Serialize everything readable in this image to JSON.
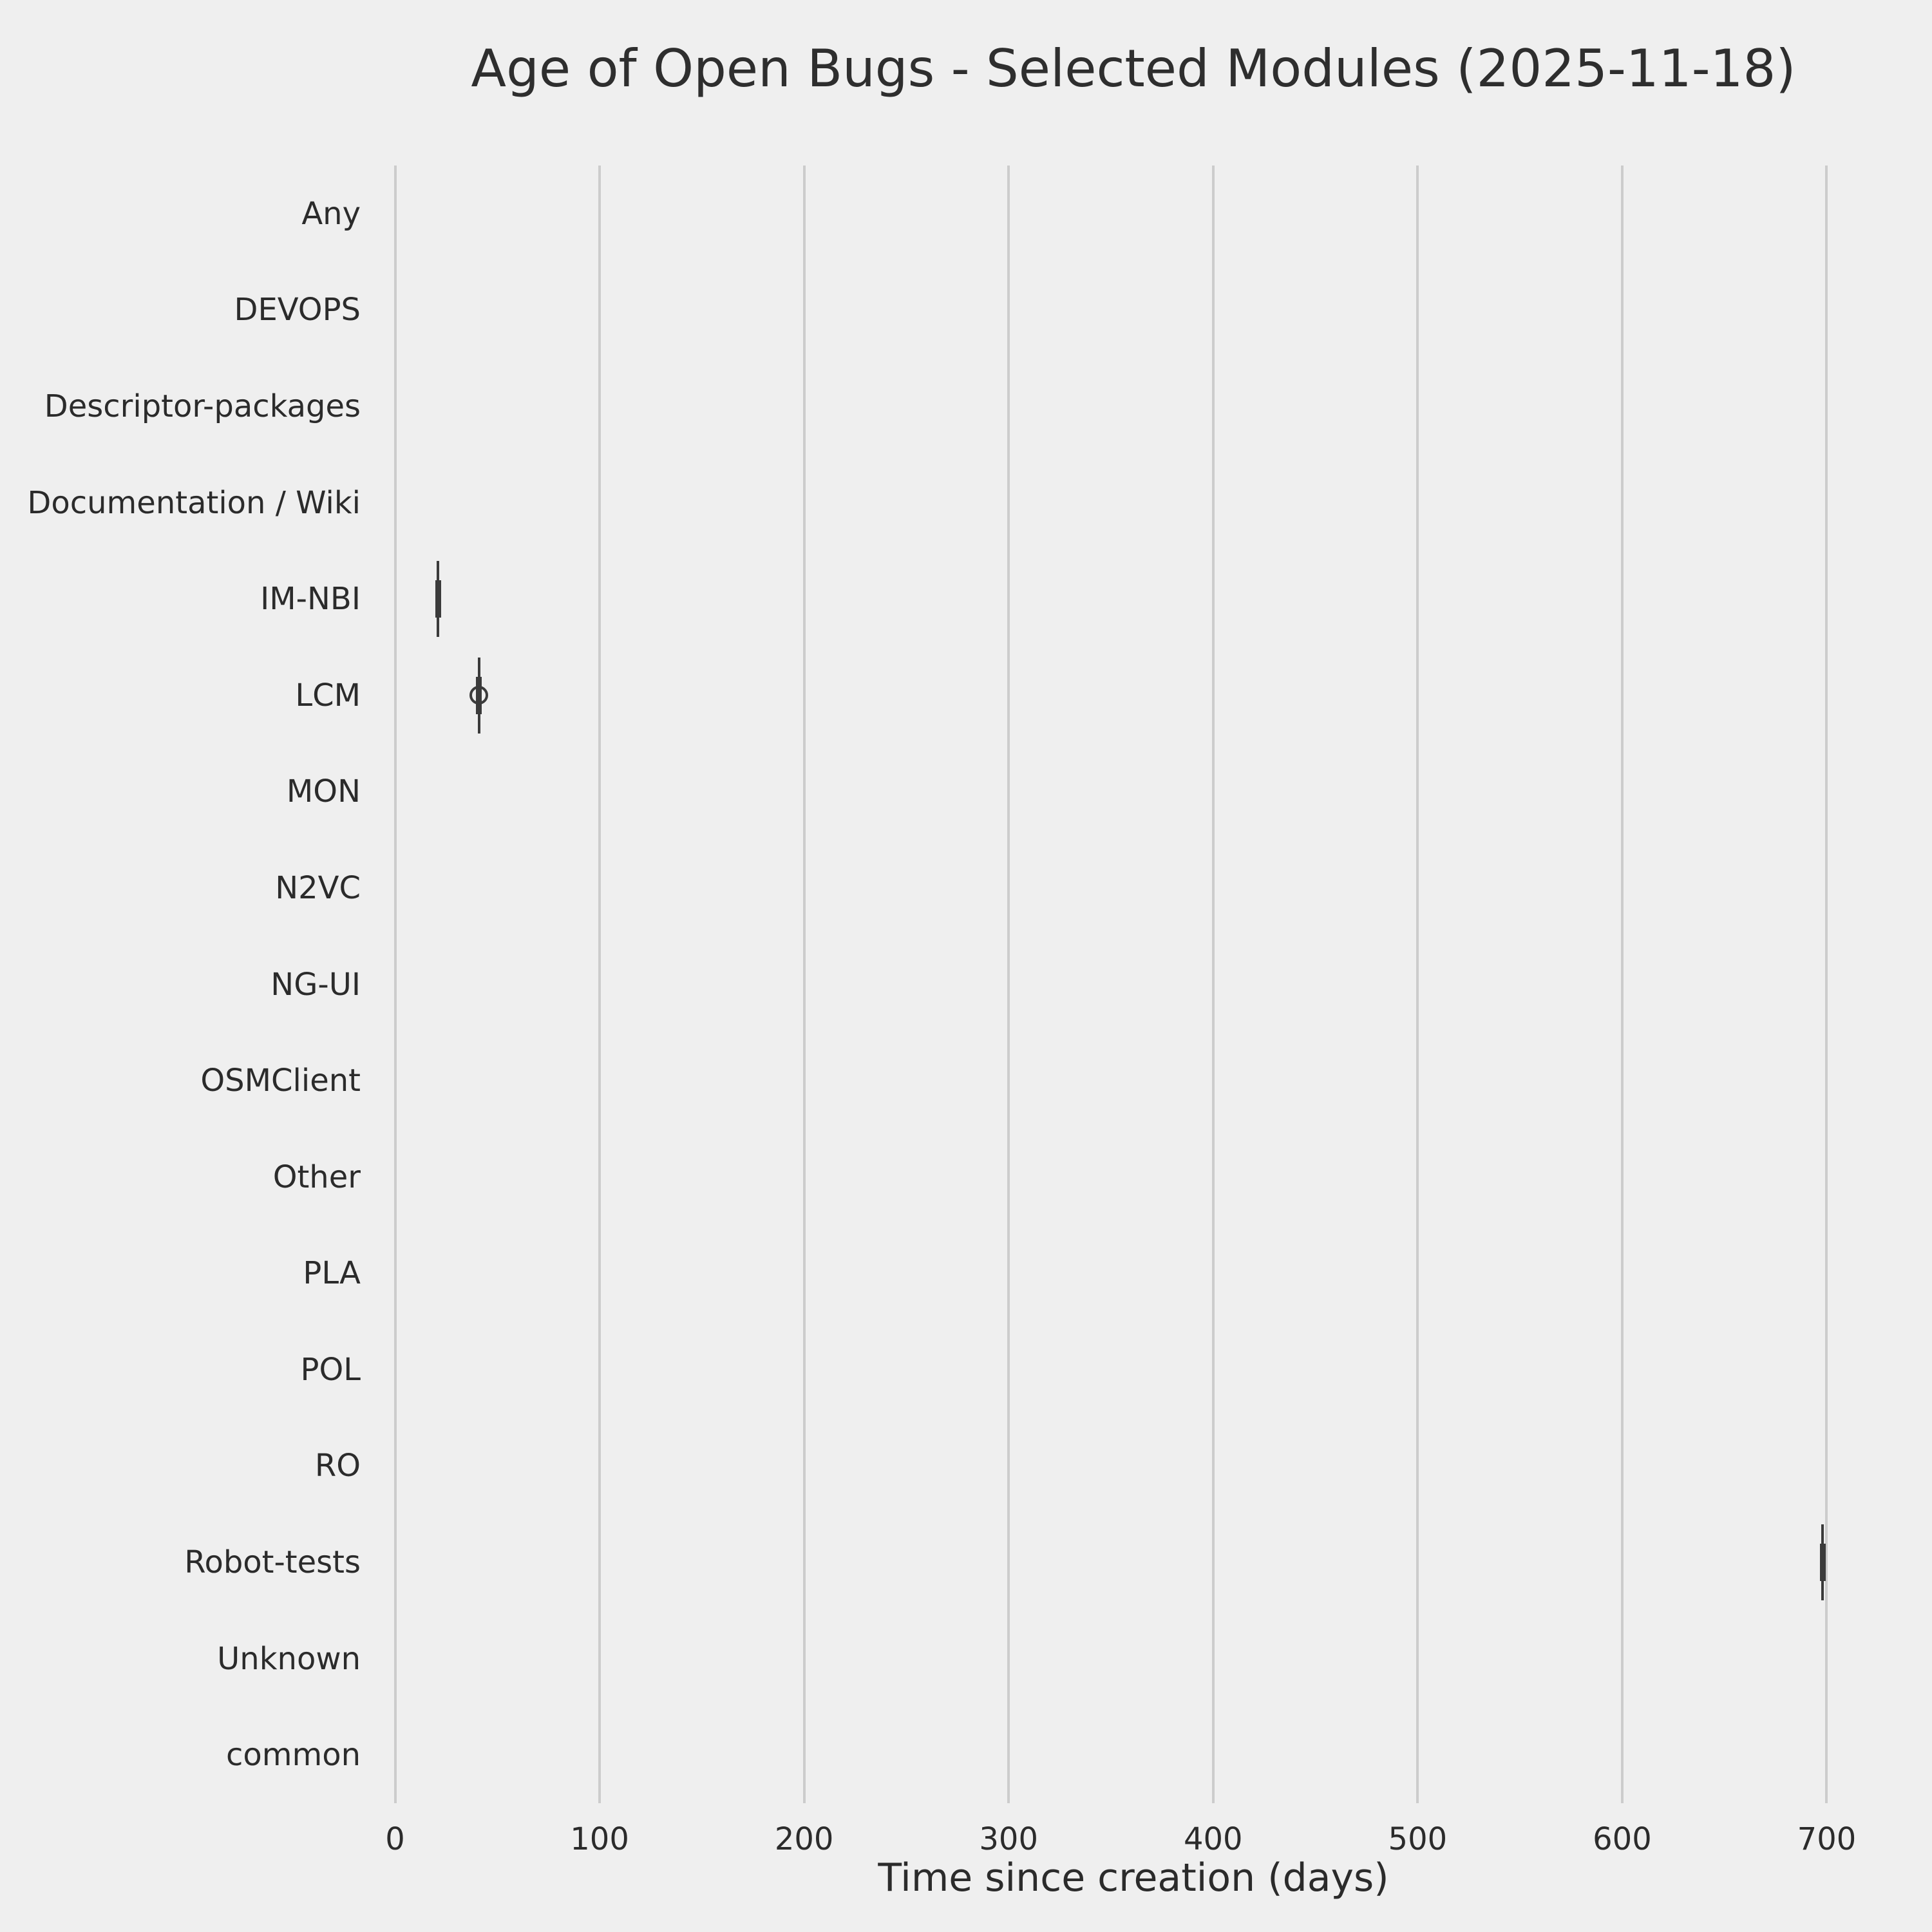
{
  "chart_data": {
    "type": "boxplot",
    "orientation": "horizontal",
    "title": "Age of Open Bugs - Selected Modules (2025-11-18)",
    "xlabel": "Time since creation (days)",
    "ylabel": "",
    "categories": [
      "Any",
      "DEVOPS",
      "Descriptor-packages",
      "Documentation / Wiki",
      "IM-NBI",
      "LCM",
      "MON",
      "N2VC",
      "NG-UI",
      "OSMClient",
      "Other",
      "PLA",
      "POL",
      "RO",
      "Robot-tests",
      "Unknown",
      "common"
    ],
    "xticks": [
      0,
      100,
      200,
      300,
      400,
      500,
      600,
      700
    ],
    "xlim_days": [
      -14,
      736
    ],
    "grid": "vertical-only",
    "legend": "none",
    "boxes": [
      {
        "category": "IM-NBI",
        "whisker_low": 21,
        "q1": 21,
        "median": 21,
        "q3": 21,
        "whisker_high": 21,
        "fliers": []
      },
      {
        "category": "LCM",
        "whisker_low": 41,
        "q1": 41,
        "median": 41,
        "q3": 41,
        "whisker_high": 41,
        "fliers": [
          41
        ]
      },
      {
        "category": "Robot-tests",
        "whisker_low": 698,
        "q1": 698,
        "median": 698,
        "q3": 698,
        "whisker_high": 698,
        "fliers": []
      }
    ],
    "categories_without_data": [
      "Any",
      "DEVOPS",
      "Descriptor-packages",
      "Documentation / Wiki",
      "MON",
      "N2VC",
      "NG-UI",
      "OSMClient",
      "Other",
      "PLA",
      "POL",
      "RO",
      "Unknown",
      "common"
    ]
  },
  "colors": {
    "background": "#efefef",
    "gridline": "#cccccc",
    "box_and_whisker": "#3b3b3b",
    "text": "#2b2b2b"
  }
}
